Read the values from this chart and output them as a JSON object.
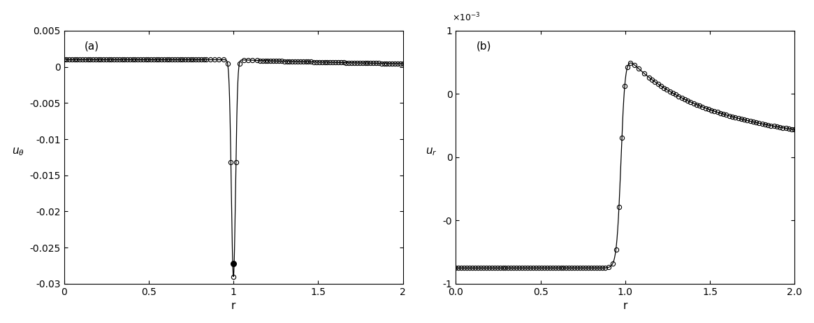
{
  "panel_a_label": "(a)",
  "panel_b_label": "(b)",
  "xlabel": "r",
  "ylabel_a": "u_\\theta",
  "ylabel_b": "u_r",
  "xlim": [
    0,
    2
  ],
  "ylim_a": [
    -0.03,
    0.005
  ],
  "ylim_b": [
    -0.001,
    0.001
  ],
  "xticks": [
    0,
    0.5,
    1.0,
    1.5,
    2.0
  ],
  "yticks_a": [
    -0.03,
    -0.025,
    -0.02,
    -0.015,
    -0.01,
    -0.005,
    0.0,
    0.005
  ],
  "yticks_b": [
    -1.0,
    -0.5,
    0.0,
    0.5,
    1.0
  ],
  "background_color": "#ffffff",
  "line_color": "#000000",
  "circle_color": "#000000",
  "filled_dot_color": "#000000",
  "figsize": [
    11.65,
    4.62
  ],
  "dpi": 100
}
